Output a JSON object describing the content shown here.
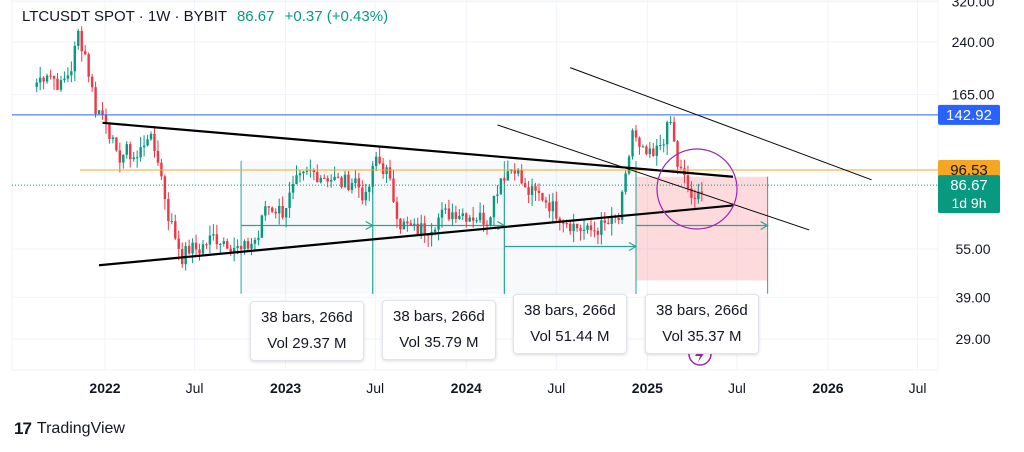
{
  "header": {
    "symbol_line": "LTCUSDT SPOT · 1W · BYBIT",
    "price": "86.67",
    "change": "+0.37 (+0.43%)"
  },
  "footer": {
    "brand": "TradingView",
    "logo": "17"
  },
  "price_labels": {
    "resistance": {
      "text": "142.92",
      "value": 142.92,
      "color": "#2962ff"
    },
    "level": {
      "text": "96.53",
      "value": 96.53,
      "color": "#f5a623"
    },
    "last": {
      "text": "86.67",
      "value": 86.67,
      "color": "#089981"
    },
    "countdown": "1d 9h"
  },
  "measure_boxes": [
    {
      "line1": "38 bars, 266d",
      "line2": "Vol 29.37 M"
    },
    {
      "line1": "38 bars, 266d",
      "line2": "Vol 35.79 M"
    },
    {
      "line1": "38 bars, 266d",
      "line2": "Vol 51.44 M"
    },
    {
      "line1": "38 bars, 266d",
      "line2": "Vol 35.37 M"
    }
  ],
  "chart_data": {
    "type": "candlestick",
    "title": "LTCUSDT SPOT · 1W · BYBIT",
    "y_scale": "log",
    "y_ticks": [
      "320.00",
      "240.00",
      "165.00",
      "55.00",
      "39.00",
      "29.00"
    ],
    "y_tick_values": [
      320,
      240,
      165,
      55,
      39,
      29
    ],
    "x_ticks": [
      "2022",
      "Jul",
      "2023",
      "Jul",
      "2024",
      "Jul",
      "2025",
      "Jul",
      "2026",
      "Jul"
    ],
    "x_tick_dates": [
      "2022-01-01",
      "2022-07-01",
      "2023-01-01",
      "2023-07-01",
      "2024-01-01",
      "2024-07-01",
      "2025-01-01",
      "2025-07-01",
      "2026-01-01",
      "2026-07-01"
    ],
    "up_color": "#089981",
    "down_color": "#f23645",
    "close_path": [
      [
        "2021-08-16",
        180
      ],
      [
        "2021-09-06",
        195
      ],
      [
        "2021-10-04",
        175
      ],
      [
        "2021-10-25",
        200
      ],
      [
        "2021-11-08",
        255
      ],
      [
        "2021-11-22",
        220
      ],
      [
        "2021-12-13",
        150
      ],
      [
        "2022-01-03",
        140
      ],
      [
        "2022-01-24",
        105
      ],
      [
        "2022-02-14",
        110
      ],
      [
        "2022-03-07",
        105
      ],
      [
        "2022-03-28",
        125
      ],
      [
        "2022-04-18",
        105
      ],
      [
        "2022-05-09",
        70
      ],
      [
        "2022-06-06",
        52
      ],
      [
        "2022-06-20",
        55
      ],
      [
        "2022-07-11",
        55
      ],
      [
        "2022-08-08",
        60
      ],
      [
        "2022-09-05",
        58
      ],
      [
        "2022-10-03",
        54
      ],
      [
        "2022-11-07",
        60
      ],
      [
        "2022-11-21",
        75
      ],
      [
        "2022-12-26",
        72
      ],
      [
        "2023-01-23",
        88
      ],
      [
        "2023-02-20",
        95
      ],
      [
        "2023-03-27",
        92
      ],
      [
        "2023-04-24",
        88
      ],
      [
        "2023-05-22",
        90
      ],
      [
        "2023-06-12",
        78
      ],
      [
        "2023-07-03",
        105
      ],
      [
        "2023-07-24",
        95
      ],
      [
        "2023-08-21",
        66
      ],
      [
        "2023-09-18",
        63
      ],
      [
        "2023-10-16",
        64
      ],
      [
        "2023-11-13",
        70
      ],
      [
        "2023-12-11",
        72
      ],
      [
        "2024-01-08",
        70
      ],
      [
        "2024-02-12",
        68
      ],
      [
        "2024-03-11",
        92
      ],
      [
        "2024-04-08",
        100
      ],
      [
        "2024-04-29",
        83
      ],
      [
        "2024-06-03",
        80
      ],
      [
        "2024-07-08",
        70
      ],
      [
        "2024-08-05",
        65
      ],
      [
        "2024-09-02",
        62
      ],
      [
        "2024-10-07",
        65
      ],
      [
        "2024-11-04",
        68
      ],
      [
        "2024-11-18",
        90
      ],
      [
        "2024-12-02",
        128
      ],
      [
        "2024-12-16",
        110
      ],
      [
        "2025-01-13",
        105
      ],
      [
        "2025-02-03",
        122
      ],
      [
        "2025-02-17",
        135
      ],
      [
        "2025-03-03",
        100
      ],
      [
        "2025-03-17",
        90
      ],
      [
        "2025-04-07",
        75
      ],
      [
        "2025-04-21",
        86.67
      ]
    ],
    "trendlines": [
      {
        "name": "triangle-upper",
        "from": [
          "2021-12-27",
          135
        ],
        "to": [
          "2025-06-23",
          92
        ]
      },
      {
        "name": "triangle-lower",
        "from": [
          "2021-12-20",
          49
        ],
        "to": [
          "2025-06-23",
          75
        ]
      },
      {
        "name": "channel-upper",
        "from": [
          "2024-07-29",
          200
        ],
        "to": [
          "2026-03-30",
          90
        ]
      },
      {
        "name": "channel-lower",
        "from": [
          "2024-03-04",
          133
        ],
        "to": [
          "2025-11-24",
          63
        ]
      }
    ],
    "horizontal_levels": [
      {
        "value": 142.92,
        "color": "#2962ff"
      },
      {
        "value": 96.53,
        "color": "#f5a623"
      }
    ]
  }
}
